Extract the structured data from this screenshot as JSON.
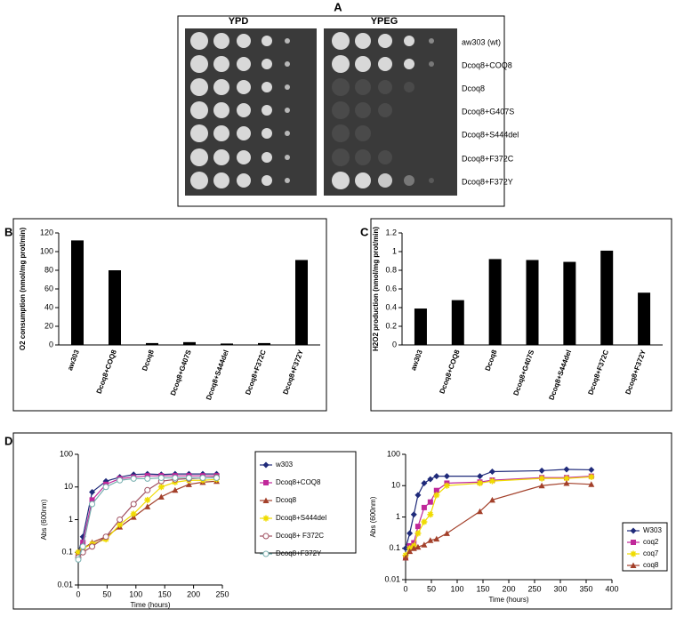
{
  "panel_a": {
    "label": "A",
    "plates": [
      "YPD",
      "YPEG"
    ],
    "strains": [
      "aw303 (wt)",
      "Dcoq8+COQ8",
      "Dcoq8",
      "Dcoq8+G407S",
      "Dcoq8+S444del",
      "Dcoq8+F372C",
      "Dcoq8+F372Y"
    ]
  },
  "chart_data": [
    {
      "type": "bar",
      "label": "B",
      "y_label": "O2 consumption (nmol/mg prot/min)",
      "categories": [
        "aw303",
        "Dcoq8+COQ8",
        "Dcoq8",
        "Dcoq8+G407S",
        "Dcoq8+S444del",
        "Dcoq8+F372C",
        "Dcoq8+F372Y"
      ],
      "values": [
        112,
        80,
        2,
        3,
        1.5,
        2,
        91
      ],
      "color": "#000000",
      "ylim": [
        0,
        120
      ],
      "yticks": [
        0,
        20,
        40,
        60,
        80,
        100,
        120
      ]
    },
    {
      "type": "bar",
      "label": "C",
      "y_label": "H2O2 production (nmol/mg prot/min)",
      "categories": [
        "aw303",
        "Dcoq8+COQ8",
        "Dcoq8",
        "Dcoq8+G407S",
        "Dcoq8+S444del",
        "Dcoq8+F372C",
        "Dcoq8+F372Y"
      ],
      "values": [
        0.39,
        0.48,
        0.92,
        0.91,
        0.89,
        1.01,
        0.56
      ],
      "color": "#000000",
      "ylim": [
        0,
        1.2
      ],
      "yticks": [
        0,
        0.2,
        0.4,
        0.6,
        0.8,
        1,
        1.2
      ]
    },
    {
      "type": "line",
      "label": "D",
      "x_label": "Time (hours)",
      "y_label": "Abs (600nm)",
      "log_y": true,
      "xlim": [
        0,
        250
      ],
      "xticks": [
        0,
        50,
        100,
        150,
        200,
        250
      ],
      "ylim": [
        0.01,
        100
      ],
      "yticks": [
        0.01,
        0.1,
        1,
        10,
        100
      ],
      "series": [
        {
          "name": "w303",
          "color": "#1f2a7a",
          "marker": "diamond",
          "x": [
            0,
            8,
            24,
            48,
            72,
            96,
            120,
            144,
            168,
            192,
            216,
            240
          ],
          "values": [
            0.1,
            0.3,
            7,
            15,
            20,
            24,
            25,
            24,
            25,
            25,
            25,
            25
          ]
        },
        {
          "name": "Dcoq8+COQ8",
          "color": "#c0289a",
          "marker": "square",
          "x": [
            0,
            8,
            24,
            48,
            72,
            96,
            120,
            144,
            168,
            192,
            216,
            240
          ],
          "values": [
            0.08,
            0.2,
            4,
            12,
            18,
            20,
            22,
            22,
            22,
            22,
            22,
            22
          ]
        },
        {
          "name": "Dcoq8",
          "color": "#a3402a",
          "marker": "triangle",
          "x": [
            0,
            8,
            24,
            48,
            72,
            96,
            120,
            144,
            168,
            192,
            216,
            240
          ],
          "values": [
            0.1,
            0.13,
            0.2,
            0.3,
            0.6,
            1.2,
            2.5,
            5,
            8,
            12,
            14,
            15
          ]
        },
        {
          "name": "Dcoq8+S444del",
          "color": "#f0dc00",
          "marker": "star",
          "x": [
            0,
            8,
            24,
            48,
            72,
            96,
            120,
            144,
            168,
            192,
            216,
            240
          ],
          "values": [
            0.1,
            0.13,
            0.18,
            0.25,
            0.7,
            1.5,
            4,
            10,
            14,
            16,
            16,
            17
          ]
        },
        {
          "name": "Dcoq8+ F372C",
          "color": "#a05060",
          "marker": "circle-open",
          "x": [
            0,
            8,
            24,
            48,
            72,
            96,
            120,
            144,
            168,
            192,
            216,
            240
          ],
          "values": [
            0.07,
            0.1,
            0.15,
            0.3,
            1,
            3,
            8,
            15,
            17,
            18,
            19,
            20
          ]
        },
        {
          "name": "Dcoq8+F372Y",
          "color": "#78b0b0",
          "marker": "circle-open",
          "x": [
            0,
            8,
            24,
            48,
            72,
            96,
            120,
            144,
            168,
            192,
            216,
            240
          ],
          "values": [
            0.06,
            0.15,
            3,
            10,
            16,
            18,
            18,
            19,
            19,
            19,
            19,
            19
          ]
        }
      ]
    },
    {
      "type": "line",
      "x_label": "Time (hours)",
      "y_label": "Abs (600nm)",
      "log_y": true,
      "xlim": [
        0,
        400
      ],
      "xticks": [
        0,
        50,
        100,
        150,
        200,
        250,
        300,
        350,
        400
      ],
      "ylim": [
        0.01,
        100
      ],
      "yticks": [
        0.01,
        0.1,
        1,
        10,
        100
      ],
      "series": [
        {
          "name": "W303",
          "color": "#1f2a7a",
          "marker": "diamond",
          "x": [
            0,
            8,
            16,
            24,
            36,
            48,
            60,
            80,
            144,
            168,
            264,
            312,
            360
          ],
          "values": [
            0.1,
            0.3,
            1.2,
            5,
            12,
            16,
            20,
            20,
            20,
            28,
            30,
            33,
            32
          ]
        },
        {
          "name": "coq2",
          "color": "#c0289a",
          "marker": "square",
          "x": [
            0,
            8,
            16,
            24,
            36,
            48,
            60,
            80,
            144,
            168,
            264,
            312,
            360
          ],
          "values": [
            0.05,
            0.12,
            0.15,
            0.5,
            2,
            3,
            7,
            12,
            13,
            15,
            18,
            18,
            20
          ]
        },
        {
          "name": "coq7",
          "color": "#f0dc00",
          "marker": "star",
          "x": [
            0,
            8,
            16,
            24,
            36,
            48,
            60,
            80,
            144,
            168,
            264,
            312,
            360
          ],
          "values": [
            0.06,
            0.1,
            0.12,
            0.3,
            0.7,
            1.2,
            5,
            10,
            12,
            14,
            17,
            17,
            19
          ]
        },
        {
          "name": "coq8",
          "color": "#a3402a",
          "marker": "triangle",
          "x": [
            0,
            8,
            16,
            24,
            36,
            48,
            60,
            80,
            144,
            168,
            264,
            312,
            360
          ],
          "values": [
            0.05,
            0.08,
            0.1,
            0.11,
            0.13,
            0.18,
            0.2,
            0.3,
            1.5,
            3.5,
            10,
            12,
            11
          ]
        }
      ]
    }
  ]
}
